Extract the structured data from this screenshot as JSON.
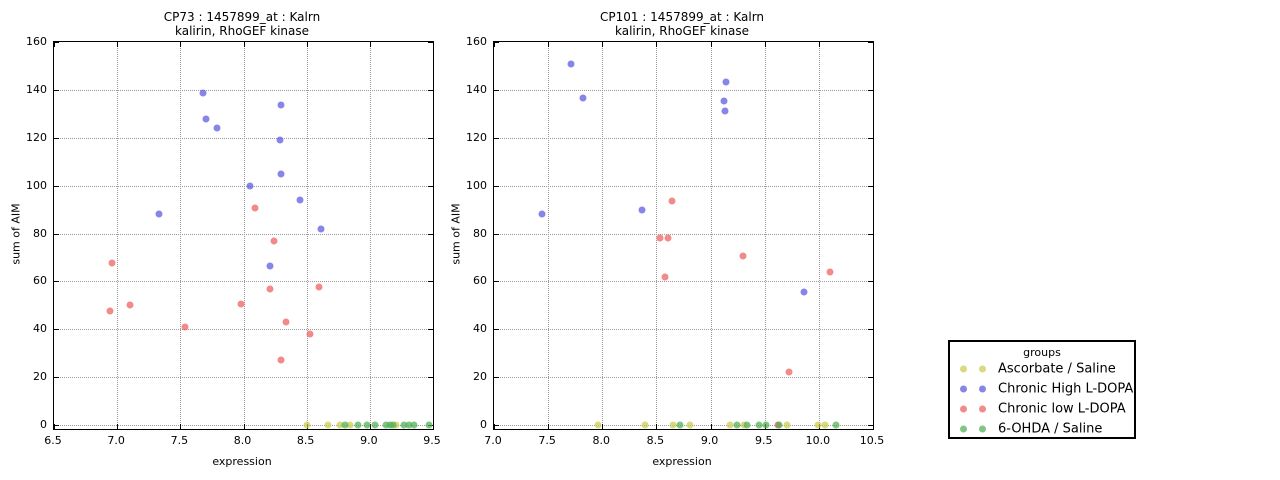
{
  "legend": {
    "title": "groups",
    "entries": [
      {
        "label": "Ascorbate / Saline",
        "color": "#cbcb4f"
      },
      {
        "label": "Chronic High L-DOPA",
        "color": "#5757e0"
      },
      {
        "label": "Chronic low L-DOPA",
        "color": "#ef5d5d"
      },
      {
        "label": "6-OHDA / Saline",
        "color": "#4fae54"
      }
    ]
  },
  "chart_data": [
    {
      "type": "scatter",
      "title_line1": "CP73 : 1457899_at : Kalrn",
      "title_line2": "kalirin, RhoGEF kinase",
      "xlabel": "expression",
      "ylabel": "sum of AIM",
      "xlim": [
        6.5,
        9.5
      ],
      "ylim": [
        0,
        160
      ],
      "grid": true,
      "xticks": [
        6.5,
        7.0,
        7.5,
        8.0,
        8.5,
        9.0,
        9.5
      ],
      "xtick_labels": [
        "6.5",
        "7.0",
        "7.5",
        "8.0",
        "8.5",
        "9.0",
        "9.5"
      ],
      "yticks": [
        0,
        20,
        40,
        60,
        80,
        100,
        120,
        140,
        160
      ],
      "ytick_labels": [
        "0",
        "20",
        "40",
        "60",
        "80",
        "100",
        "120",
        "140",
        "160"
      ],
      "series": [
        {
          "name": "Ascorbate / Saline",
          "color": "#cbcb4f",
          "points": [
            [
              8.5,
              0
            ],
            [
              8.67,
              0
            ],
            [
              8.76,
              0
            ],
            [
              8.84,
              0
            ],
            [
              9.21,
              0
            ]
          ]
        },
        {
          "name": "Chronic High L-DOPA",
          "color": "#5757e0",
          "points": [
            [
              7.33,
              88
            ],
            [
              7.68,
              138.5
            ],
            [
              7.7,
              128
            ],
            [
              7.79,
              124
            ],
            [
              8.05,
              100
            ],
            [
              8.21,
              66.5
            ],
            [
              8.29,
              119
            ],
            [
              8.3,
              133.5
            ],
            [
              8.3,
              105
            ],
            [
              8.45,
              94
            ],
            [
              8.61,
              82
            ]
          ]
        },
        {
          "name": "Chronic low L-DOPA",
          "color": "#ef5d5d",
          "points": [
            [
              6.94,
              47.5
            ],
            [
              6.96,
              67.8
            ],
            [
              7.1,
              50
            ],
            [
              7.54,
              40.8
            ],
            [
              7.98,
              50.5
            ],
            [
              8.09,
              90.5
            ],
            [
              8.21,
              57
            ],
            [
              8.24,
              76.8
            ],
            [
              8.3,
              27.3
            ],
            [
              8.34,
              43
            ],
            [
              8.53,
              38
            ],
            [
              8.6,
              57.6
            ]
          ]
        },
        {
          "name": "6-OHDA / Saline",
          "color": "#4fae54",
          "points": [
            [
              8.8,
              0
            ],
            [
              8.91,
              0
            ],
            [
              8.98,
              0
            ],
            [
              9.04,
              0
            ],
            [
              9.13,
              0
            ],
            [
              9.16,
              0
            ],
            [
              9.18,
              0
            ],
            [
              9.27,
              0
            ],
            [
              9.31,
              0
            ],
            [
              9.35,
              0
            ],
            [
              9.47,
              0
            ]
          ]
        }
      ]
    },
    {
      "type": "scatter",
      "title_line1": "CP101 : 1457899_at : Kalrn",
      "title_line2": "kalirin, RhoGEF kinase",
      "xlabel": "expression",
      "ylabel": "sum of AIM",
      "xlim": [
        7.0,
        10.5
      ],
      "ylim": [
        0,
        160
      ],
      "grid": true,
      "xticks": [
        7.0,
        7.5,
        8.0,
        8.5,
        9.0,
        9.5,
        10.0,
        10.5
      ],
      "xtick_labels": [
        "7.0",
        "7.5",
        "8.0",
        "8.5",
        "9.0",
        "9.5",
        "10.0",
        "10.5"
      ],
      "yticks": [
        0,
        20,
        40,
        60,
        80,
        100,
        120,
        140,
        160
      ],
      "ytick_labels": [
        "0",
        "20",
        "40",
        "60",
        "80",
        "100",
        "120",
        "140",
        "160"
      ],
      "series": [
        {
          "name": "Ascorbate / Saline",
          "color": "#cbcb4f",
          "points": [
            [
              7.96,
              0
            ],
            [
              8.39,
              0
            ],
            [
              8.65,
              0
            ],
            [
              8.81,
              0
            ],
            [
              9.18,
              0
            ],
            [
              9.31,
              0
            ],
            [
              9.71,
              0
            ],
            [
              9.99,
              0
            ],
            [
              10.06,
              0
            ]
          ]
        },
        {
          "name": "Chronic High L-DOPA",
          "color": "#5757e0",
          "points": [
            [
              7.44,
              88.3
            ],
            [
              7.71,
              151
            ],
            [
              7.82,
              136.5
            ],
            [
              8.37,
              90
            ],
            [
              9.12,
              135.5
            ],
            [
              9.13,
              131
            ],
            [
              9.14,
              143.3
            ],
            [
              9.86,
              55.5
            ]
          ]
        },
        {
          "name": "Chronic low L-DOPA",
          "color": "#ef5d5d",
          "points": [
            [
              8.53,
              78
            ],
            [
              8.58,
              62
            ],
            [
              8.61,
              78
            ],
            [
              8.64,
              93.7
            ],
            [
              9.3,
              70.7
            ],
            [
              9.62,
              0
            ],
            [
              9.72,
              22
            ],
            [
              10.1,
              64
            ]
          ]
        },
        {
          "name": "6-OHDA / Saline",
          "color": "#4fae54",
          "points": [
            [
              8.72,
              0
            ],
            [
              9.24,
              0
            ],
            [
              9.34,
              0
            ],
            [
              9.45,
              0
            ],
            [
              9.51,
              0
            ],
            [
              9.63,
              0
            ],
            [
              10.16,
              0
            ]
          ]
        }
      ]
    }
  ]
}
